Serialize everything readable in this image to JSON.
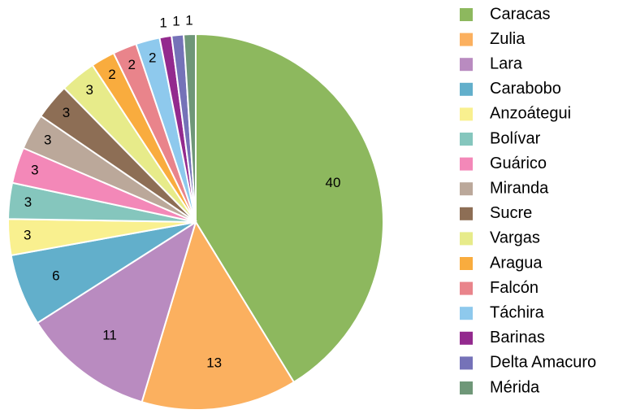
{
  "chart_data": {
    "type": "pie",
    "categories": [
      "Caracas",
      "Zulia",
      "Lara",
      "Carabobo",
      "Anzoátegui",
      "Bolívar",
      "Guárico",
      "Miranda",
      "Sucre",
      "Vargas",
      "Aragua",
      "Falcón",
      "Táchira",
      "Barinas",
      "Delta Amacuro",
      "Mérida"
    ],
    "values": [
      40,
      13,
      11,
      6,
      3,
      3,
      3,
      3,
      3,
      3,
      2,
      2,
      2,
      1,
      1,
      1
    ],
    "colors": [
      "#8db85e",
      "#fbb05f",
      "#b98bc0",
      "#62afcb",
      "#f9f08f",
      "#85c6bd",
      "#f388b8",
      "#bba89a",
      "#8d6e55",
      "#e7eb8a",
      "#f9ac3e",
      "#e9848b",
      "#8ec9ed",
      "#932a8e",
      "#7572b8",
      "#6f9778"
    ],
    "legend": "right"
  }
}
